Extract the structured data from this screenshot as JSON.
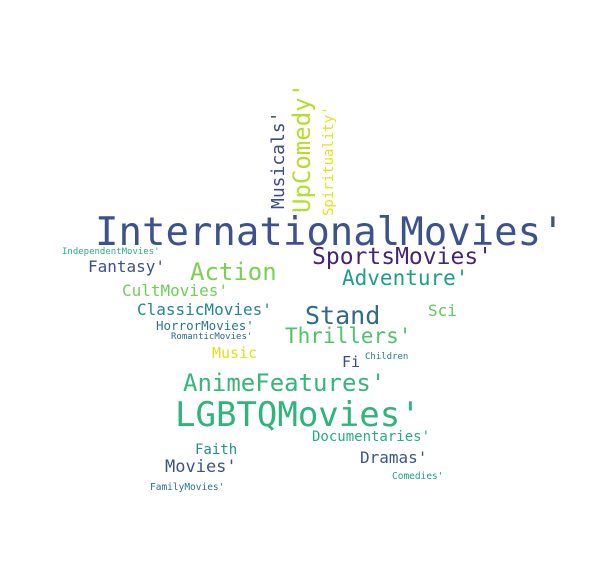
{
  "word_cloud": {
    "words": [
      {
        "text": "InternationalMovies'",
        "color": "#3b528b"
      },
      {
        "text": "LGBTQMovies'",
        "color": "#2fb47c"
      },
      {
        "text": "UpComedy'",
        "color": "#b5de2b"
      },
      {
        "text": "SportsMovies'",
        "color": "#482475"
      },
      {
        "text": "Action",
        "color": "#7ad151"
      },
      {
        "text": "Adventure'",
        "color": "#1f9e89"
      },
      {
        "text": "AnimeFeatures'",
        "color": "#35b779"
      },
      {
        "text": "Stand",
        "color": "#31688e"
      },
      {
        "text": "Thrillers'",
        "color": "#4ec36b"
      },
      {
        "text": "Musicals'",
        "color": "#3e4a89"
      },
      {
        "text": "Spirituality'",
        "color": "#e5e419"
      },
      {
        "text": "Fantasy'",
        "color": "#3b528b"
      },
      {
        "text": "CultMovies'",
        "color": "#6ece58"
      },
      {
        "text": "ClassicMovies'",
        "color": "#23888e"
      },
      {
        "text": "HorrorMovies'",
        "color": "#2a788e"
      },
      {
        "text": "RomanticMovies'",
        "color": "#31688e"
      },
      {
        "text": "IndependentMovies'",
        "color": "#29af7f"
      },
      {
        "text": "Sci",
        "color": "#5ec962"
      },
      {
        "text": "Music",
        "color": "#dde318"
      },
      {
        "text": "Fi",
        "color": "#3e4a89"
      },
      {
        "text": "Children",
        "color": "#287c8e"
      },
      {
        "text": "Documentaries'",
        "color": "#26ad81"
      },
      {
        "text": "Faith",
        "color": "#21918c"
      },
      {
        "text": "Dramas'",
        "color": "#39568c"
      },
      {
        "text": "Movies'",
        "color": "#3b528b"
      },
      {
        "text": "Comedies'",
        "color": "#1fa188"
      },
      {
        "text": "FamilyMovies'",
        "color": "#2c728e"
      }
    ]
  }
}
